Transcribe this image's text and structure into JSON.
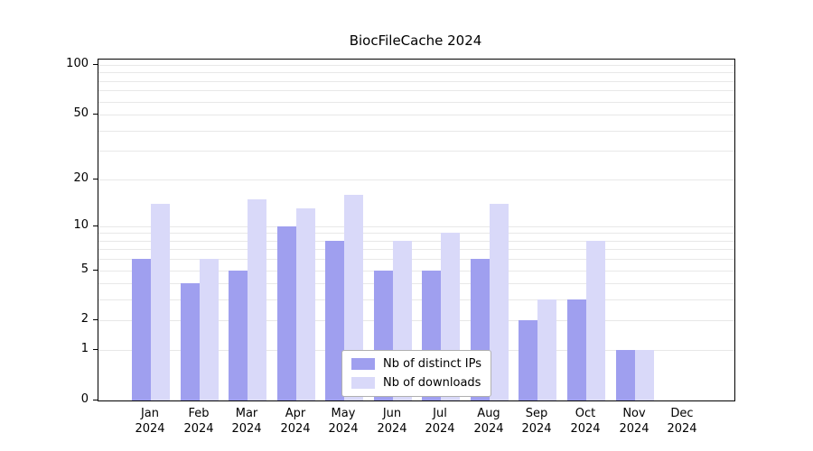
{
  "chart_data": {
    "type": "bar",
    "title": "BiocFileCache 2024",
    "year_label": "2024",
    "categories": [
      "Jan",
      "Feb",
      "Mar",
      "Apr",
      "May",
      "Jun",
      "Jul",
      "Aug",
      "Sep",
      "Oct",
      "Nov",
      "Dec"
    ],
    "series": [
      {
        "name": "Nb of distinct IPs",
        "color": "#9f9fef",
        "values": [
          6,
          4,
          5,
          10,
          8,
          5,
          5,
          6,
          2,
          3,
          1,
          0
        ]
      },
      {
        "name": "Nb of downloads",
        "color": "#d9d9f9",
        "values": [
          14,
          6,
          15,
          13,
          16,
          8,
          9,
          14,
          3,
          8,
          1,
          0
        ]
      }
    ],
    "yticks": [
      0,
      1,
      2,
      5,
      10,
      20,
      50,
      100
    ],
    "grid_values": [
      1,
      2,
      3,
      4,
      5,
      6,
      7,
      8,
      9,
      10,
      20,
      30,
      40,
      50,
      60,
      70,
      80,
      90,
      100
    ],
    "scale": "log1p",
    "ylim": [
      0,
      110
    ],
    "grid": "horizontal",
    "legend_position": "bottom-center",
    "colors": {
      "background": "#ffffff",
      "gridline": "#e8e8e8",
      "axis": "#000000"
    }
  }
}
